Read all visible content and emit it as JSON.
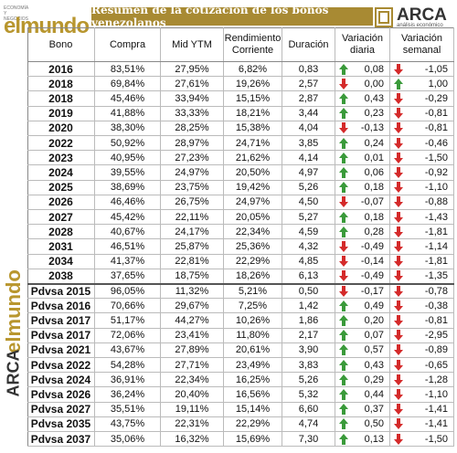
{
  "header": {
    "title": "Resumen de la cotización de los bonos venezolanos",
    "logo_left": "elmundo",
    "logo_left_tagline": "ECONOMÍA Y NEGOCIOS",
    "logo_right": "ARCA",
    "logo_right_tagline": "análisis económico"
  },
  "table": {
    "columns": [
      "Bono",
      "Compra",
      "Mid YTM",
      "Rendimiento Corriente",
      "Duración",
      "Variación diaria",
      "Variación semanal"
    ],
    "rows": [
      [
        "2016",
        "83,51%",
        "27,95%",
        "6,82%",
        "0,83",
        "0,08",
        "-1,05"
      ],
      [
        "2018",
        "69,84%",
        "27,61%",
        "19,26%",
        "2,57",
        "0,00",
        "1,00"
      ],
      [
        "2018",
        "45,46%",
        "33,94%",
        "15,15%",
        "2,87",
        "0,43",
        "-0,29"
      ],
      [
        "2019",
        "41,88%",
        "33,33%",
        "18,21%",
        "3,44",
        "0,23",
        "-0,81"
      ],
      [
        "2020",
        "38,30%",
        "28,25%",
        "15,38%",
        "4,04",
        "-0,13",
        "-0,81"
      ],
      [
        "2022",
        "50,92%",
        "28,97%",
        "24,71%",
        "3,85",
        "0,24",
        "-0,46"
      ],
      [
        "2023",
        "40,95%",
        "27,23%",
        "21,62%",
        "4,14",
        "0,01",
        "-1,50"
      ],
      [
        "2024",
        "39,55%",
        "24,97%",
        "20,50%",
        "4,97",
        "0,06",
        "-0,92"
      ],
      [
        "2025",
        "38,69%",
        "23,75%",
        "19,42%",
        "5,26",
        "0,18",
        "-1,10"
      ],
      [
        "2026",
        "46,46%",
        "26,75%",
        "24,97%",
        "4,50",
        "-0,07",
        "-0,88"
      ],
      [
        "2027",
        "45,42%",
        "22,11%",
        "20,05%",
        "5,27",
        "0,18",
        "-1,43"
      ],
      [
        "2028",
        "40,67%",
        "24,17%",
        "22,34%",
        "4,59",
        "0,28",
        "-1,81"
      ],
      [
        "2031",
        "46,51%",
        "25,87%",
        "25,36%",
        "4,32",
        "-0,49",
        "-1,14"
      ],
      [
        "2034",
        "41,37%",
        "22,81%",
        "22,29%",
        "4,85",
        "-0,14",
        "-1,81"
      ],
      [
        "2038",
        "37,65%",
        "18,75%",
        "18,26%",
        "6,13",
        "-0,49",
        "-1,35"
      ],
      [
        "Pdvsa 2015",
        "96,05%",
        "11,32%",
        "5,21%",
        "0,50",
        "-0,17",
        "-0,78"
      ],
      [
        "Pdvsa 2016",
        "70,66%",
        "29,67%",
        "7,25%",
        "1,42",
        "0,49",
        "-0,38"
      ],
      [
        "Pdvsa 2017",
        "51,17%",
        "44,27%",
        "10,26%",
        "1,86",
        "0,20",
        "-0,81"
      ],
      [
        "Pdvsa 2017",
        "72,06%",
        "23,41%",
        "11,80%",
        "2,17",
        "0,07",
        "-2,95"
      ],
      [
        "Pdvsa 2021",
        "43,67%",
        "27,89%",
        "20,61%",
        "3,90",
        "0,57",
        "-0,89"
      ],
      [
        "Pdvsa 2022",
        "54,28%",
        "27,71%",
        "23,49%",
        "3,83",
        "0,43",
        "-0,65"
      ],
      [
        "Pdvsa 2024",
        "36,91%",
        "22,34%",
        "16,25%",
        "5,26",
        "0,29",
        "-1,28"
      ],
      [
        "Pdvsa 2026",
        "36,24%",
        "20,40%",
        "16,56%",
        "5,32",
        "0,44",
        "-1,10"
      ],
      [
        "Pdvsa 2027",
        "35,51%",
        "19,11%",
        "15,14%",
        "6,60",
        "0,37",
        "-1,41"
      ],
      [
        "Pdvsa 2035",
        "43,75%",
        "22,31%",
        "22,29%",
        "4,74",
        "0,50",
        "-1,41"
      ],
      [
        "Pdvsa 2037",
        "35,06%",
        "16,32%",
        "15,69%",
        "7,30",
        "0,13",
        "-1,50"
      ]
    ]
  }
}
